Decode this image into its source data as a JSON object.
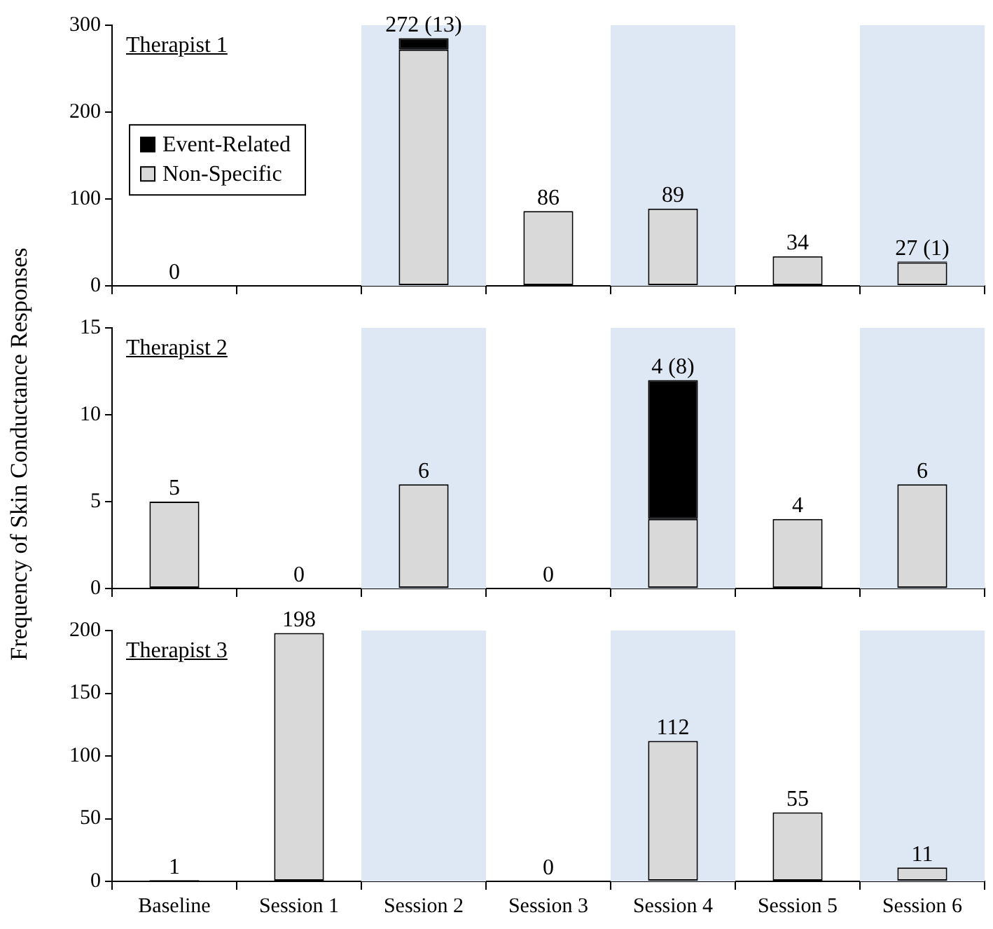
{
  "chart_data": [
    {
      "type": "bar",
      "title": "Therapist 1",
      "stacked": true,
      "legend": "left",
      "categories": [
        "Baseline",
        "Session 1",
        "Session 2",
        "Session 3",
        "Session 4",
        "Session 5",
        "Session 6"
      ],
      "series": [
        {
          "name": "Non-Specific",
          "color": "#d9d9d9",
          "values": [
            0,
            null,
            272,
            86,
            89,
            34,
            27
          ],
          "value_labels": [
            "0",
            null,
            null,
            "86",
            "89",
            "34",
            null
          ]
        },
        {
          "name": "Event-Related",
          "color": "#000000",
          "values": [
            0,
            null,
            13,
            0,
            0,
            0,
            1
          ]
        }
      ],
      "annotations": [
        {
          "text": "272 (13)",
          "x": "Session 2",
          "y": 285
        },
        {
          "text": "27 (1)",
          "x": "Session 6",
          "y": 28
        }
      ],
      "ylim": [
        0,
        300
      ],
      "yticks": [
        0,
        100,
        200,
        300
      ],
      "tick_labels": "y",
      "bands": [
        {
          "axis": "x",
          "from": "Session 2",
          "to": "Session 2",
          "color": "#dde8f4"
        },
        {
          "axis": "x",
          "from": "Session 4",
          "to": "Session 4",
          "color": "#dde8f4"
        },
        {
          "axis": "x",
          "from": "Session 6",
          "to": "Session 6",
          "color": "#dde8f4"
        }
      ]
    },
    {
      "type": "bar",
      "title": "Therapist 2",
      "stacked": true,
      "legend": false,
      "ylabel": "Frequency of Skin Conductance Responses",
      "categories": [
        "Baseline",
        "Session 1",
        "Session 2",
        "Session 3",
        "Session 4",
        "Session 5",
        "Session 6"
      ],
      "series": [
        {
          "color": "#d9d9d9",
          "values": [
            5,
            0,
            6,
            0,
            4,
            4,
            6
          ],
          "value_labels": [
            "5",
            "0",
            "6",
            "0",
            null,
            "4",
            "6"
          ]
        },
        {
          "color": "#000000",
          "values": [
            0,
            0,
            0,
            0,
            8,
            0,
            0
          ]
        }
      ],
      "annotations": [
        {
          "text": "4 (8)",
          "x": "Session 4",
          "y": 12
        }
      ],
      "ylim": [
        0,
        15
      ],
      "yticks": [
        0,
        5,
        10,
        15
      ],
      "tick_labels": "y",
      "bands": [
        {
          "axis": "x",
          "from": "Session 2",
          "to": "Session 2",
          "color": "#dde8f4"
        },
        {
          "axis": "x",
          "from": "Session 4",
          "to": "Session 4",
          "color": "#dde8f4"
        },
        {
          "axis": "x",
          "from": "Session 6",
          "to": "Session 6",
          "color": "#dde8f4"
        }
      ]
    },
    {
      "type": "bar",
      "title": "Therapist 3",
      "stacked": true,
      "legend": false,
      "categories": [
        "Baseline",
        "Session 1",
        "Session 2",
        "Session 3",
        "Session 4",
        "Session 5",
        "Session 6"
      ],
      "series": [
        {
          "color": "#d9d9d9",
          "values": [
            1,
            198,
            null,
            0,
            112,
            55,
            11
          ],
          "value_labels": [
            "1",
            "198",
            null,
            "0",
            "112",
            "55",
            "11"
          ]
        },
        {
          "color": "#000000",
          "values": [
            0,
            0,
            null,
            0,
            0,
            0,
            0
          ]
        }
      ],
      "ylim": [
        0,
        200
      ],
      "yticks": [
        0,
        50,
        100,
        150,
        200
      ],
      "bands": [
        {
          "axis": "x",
          "from": "Session 2",
          "to": "Session 2",
          "color": "#dde8f4"
        },
        {
          "axis": "x",
          "from": "Session 4",
          "to": "Session 4",
          "color": "#dde8f4"
        },
        {
          "axis": "x",
          "from": "Session 6",
          "to": "Session 6",
          "color": "#dde8f4"
        }
      ]
    }
  ]
}
